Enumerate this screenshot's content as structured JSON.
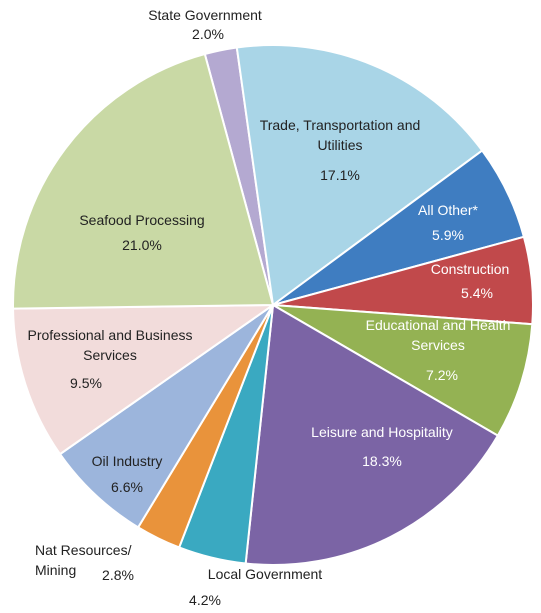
{
  "chart_data": {
    "type": "pie",
    "categories": [
      "State Government",
      "Trade, Transportation and Utilities",
      "All Other*",
      "Construction",
      "Educational and Health Services",
      "Leisure and Hospitality",
      "Local Government",
      "Nat Resources/ Mining",
      "Oil Industry",
      "Professional and Business Services",
      "Seafood Processing"
    ],
    "values": [
      2.0,
      17.1,
      5.9,
      5.4,
      7.2,
      18.3,
      4.2,
      2.8,
      6.6,
      9.5,
      21.0
    ],
    "value_labels": [
      "2.0%",
      "17.1%",
      "5.9%",
      "5.4%",
      "7.2%",
      "18.3%",
      "4.2%",
      "2.8%",
      "6.6%",
      "9.5%",
      "21.0%"
    ],
    "colors": [
      "#b4a9d1",
      "#a9d5e7",
      "#3f7dc1",
      "#c1494b",
      "#94b253",
      "#7b64a5",
      "#3aa9c1",
      "#e9933b",
      "#9cb5dc",
      "#f2dcdb",
      "#c9d9a5"
    ]
  }
}
